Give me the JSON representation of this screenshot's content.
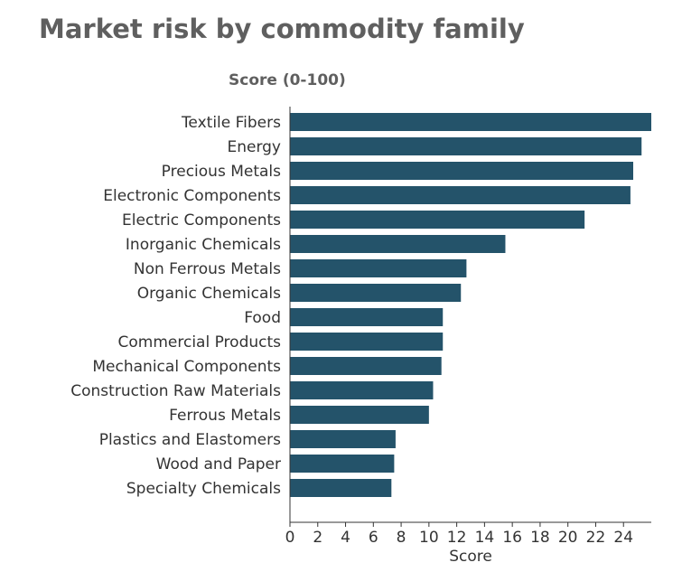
{
  "chart_data": {
    "type": "bar",
    "orientation": "horizontal",
    "title": "Market risk by commodity family",
    "subtitle": "Score (0-100)",
    "xlabel": "Score",
    "ylabel": "",
    "xlim": [
      0,
      26
    ],
    "xticks": [
      0,
      2,
      4,
      6,
      8,
      10,
      12,
      14,
      16,
      18,
      20,
      22,
      24
    ],
    "grid": false,
    "bar_color": "#24536a",
    "categories": [
      "Textile Fibers",
      "Energy",
      "Precious Metals",
      "Electronic Components",
      "Electric Components",
      "Inorganic Chemicals",
      "Non Ferrous Metals",
      "Organic Chemicals",
      "Food",
      "Commercial Products",
      "Mechanical Components",
      "Construction Raw Materials",
      "Ferrous Metals",
      "Plastics and Elastomers",
      "Wood and Paper",
      "Specialty Chemicals"
    ],
    "values": [
      26.0,
      25.3,
      24.7,
      24.5,
      21.2,
      15.5,
      12.7,
      12.3,
      11.0,
      11.0,
      10.9,
      10.3,
      10.0,
      7.6,
      7.5,
      7.3
    ]
  }
}
